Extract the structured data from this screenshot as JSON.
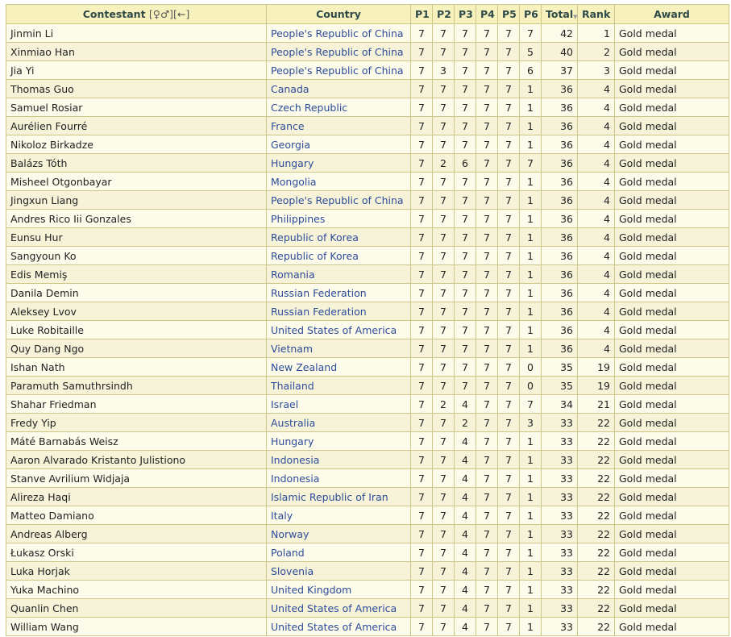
{
  "table": {
    "headers": {
      "contestant": "Contestant",
      "contestant_icons": "[♀♂][←]",
      "country": "Country",
      "p1": "P1",
      "p2": "P2",
      "p3": "P3",
      "p4": "P4",
      "p5": "P5",
      "p6": "P6",
      "total": "Total",
      "rank": "Rank",
      "award": "Award"
    },
    "sorted_column": "total",
    "rows": [
      {
        "name": "Jinmin Li",
        "country": "People's Republic of China",
        "scores": [
          7,
          7,
          7,
          7,
          7,
          7
        ],
        "total": 42,
        "rank": 1,
        "award": "Gold medal"
      },
      {
        "name": "Xinmiao Han",
        "country": "People's Republic of China",
        "scores": [
          7,
          7,
          7,
          7,
          7,
          5
        ],
        "total": 40,
        "rank": 2,
        "award": "Gold medal"
      },
      {
        "name": "Jia Yi",
        "country": "People's Republic of China",
        "scores": [
          7,
          3,
          7,
          7,
          7,
          6
        ],
        "total": 37,
        "rank": 3,
        "award": "Gold medal"
      },
      {
        "name": "Thomas Guo",
        "country": "Canada",
        "scores": [
          7,
          7,
          7,
          7,
          7,
          1
        ],
        "total": 36,
        "rank": 4,
        "award": "Gold medal"
      },
      {
        "name": "Samuel Rosiar",
        "country": "Czech Republic",
        "scores": [
          7,
          7,
          7,
          7,
          7,
          1
        ],
        "total": 36,
        "rank": 4,
        "award": "Gold medal"
      },
      {
        "name": "Aurélien Fourré",
        "country": "France",
        "scores": [
          7,
          7,
          7,
          7,
          7,
          1
        ],
        "total": 36,
        "rank": 4,
        "award": "Gold medal"
      },
      {
        "name": "Nikoloz Birkadze",
        "country": "Georgia",
        "scores": [
          7,
          7,
          7,
          7,
          7,
          1
        ],
        "total": 36,
        "rank": 4,
        "award": "Gold medal"
      },
      {
        "name": "Balázs Tóth",
        "country": "Hungary",
        "scores": [
          7,
          2,
          6,
          7,
          7,
          7
        ],
        "total": 36,
        "rank": 4,
        "award": "Gold medal"
      },
      {
        "name": "Misheel Otgonbayar",
        "country": "Mongolia",
        "scores": [
          7,
          7,
          7,
          7,
          7,
          1
        ],
        "total": 36,
        "rank": 4,
        "award": "Gold medal"
      },
      {
        "name": "Jingxun Liang",
        "country": "People's Republic of China",
        "scores": [
          7,
          7,
          7,
          7,
          7,
          1
        ],
        "total": 36,
        "rank": 4,
        "award": "Gold medal"
      },
      {
        "name": "Andres Rico Iii Gonzales",
        "country": "Philippines",
        "scores": [
          7,
          7,
          7,
          7,
          7,
          1
        ],
        "total": 36,
        "rank": 4,
        "award": "Gold medal"
      },
      {
        "name": "Eunsu Hur",
        "country": "Republic of Korea",
        "scores": [
          7,
          7,
          7,
          7,
          7,
          1
        ],
        "total": 36,
        "rank": 4,
        "award": "Gold medal"
      },
      {
        "name": "Sangyoun Ko",
        "country": "Republic of Korea",
        "scores": [
          7,
          7,
          7,
          7,
          7,
          1
        ],
        "total": 36,
        "rank": 4,
        "award": "Gold medal"
      },
      {
        "name": "Edis Memiş",
        "country": "Romania",
        "scores": [
          7,
          7,
          7,
          7,
          7,
          1
        ],
        "total": 36,
        "rank": 4,
        "award": "Gold medal"
      },
      {
        "name": "Danila Demin",
        "country": "Russian Federation",
        "scores": [
          7,
          7,
          7,
          7,
          7,
          1
        ],
        "total": 36,
        "rank": 4,
        "award": "Gold medal"
      },
      {
        "name": "Aleksey Lvov",
        "country": "Russian Federation",
        "scores": [
          7,
          7,
          7,
          7,
          7,
          1
        ],
        "total": 36,
        "rank": 4,
        "award": "Gold medal"
      },
      {
        "name": "Luke Robitaille",
        "country": "United States of America",
        "scores": [
          7,
          7,
          7,
          7,
          7,
          1
        ],
        "total": 36,
        "rank": 4,
        "award": "Gold medal"
      },
      {
        "name": "Quy Dang Ngo",
        "country": "Vietnam",
        "scores": [
          7,
          7,
          7,
          7,
          7,
          1
        ],
        "total": 36,
        "rank": 4,
        "award": "Gold medal"
      },
      {
        "name": "Ishan Nath",
        "country": "New Zealand",
        "scores": [
          7,
          7,
          7,
          7,
          7,
          0
        ],
        "total": 35,
        "rank": 19,
        "award": "Gold medal"
      },
      {
        "name": "Paramuth Samuthrsindh",
        "country": "Thailand",
        "scores": [
          7,
          7,
          7,
          7,
          7,
          0
        ],
        "total": 35,
        "rank": 19,
        "award": "Gold medal"
      },
      {
        "name": "Shahar Friedman",
        "country": "Israel",
        "scores": [
          7,
          2,
          4,
          7,
          7,
          7
        ],
        "total": 34,
        "rank": 21,
        "award": "Gold medal"
      },
      {
        "name": "Fredy Yip",
        "country": "Australia",
        "scores": [
          7,
          7,
          2,
          7,
          7,
          3
        ],
        "total": 33,
        "rank": 22,
        "award": "Gold medal"
      },
      {
        "name": "Máté Barnabás Weisz",
        "country": "Hungary",
        "scores": [
          7,
          7,
          4,
          7,
          7,
          1
        ],
        "total": 33,
        "rank": 22,
        "award": "Gold medal"
      },
      {
        "name": "Aaron Alvarado Kristanto Julistiono",
        "country": "Indonesia",
        "scores": [
          7,
          7,
          4,
          7,
          7,
          1
        ],
        "total": 33,
        "rank": 22,
        "award": "Gold medal"
      },
      {
        "name": "Stanve Avrilium Widjaja",
        "country": "Indonesia",
        "scores": [
          7,
          7,
          4,
          7,
          7,
          1
        ],
        "total": 33,
        "rank": 22,
        "award": "Gold medal"
      },
      {
        "name": "Alireza Haqi",
        "country": "Islamic Republic of Iran",
        "scores": [
          7,
          7,
          4,
          7,
          7,
          1
        ],
        "total": 33,
        "rank": 22,
        "award": "Gold medal"
      },
      {
        "name": "Matteo Damiano",
        "country": "Italy",
        "scores": [
          7,
          7,
          4,
          7,
          7,
          1
        ],
        "total": 33,
        "rank": 22,
        "award": "Gold medal"
      },
      {
        "name": "Andreas Alberg",
        "country": "Norway",
        "scores": [
          7,
          7,
          4,
          7,
          7,
          1
        ],
        "total": 33,
        "rank": 22,
        "award": "Gold medal"
      },
      {
        "name": "Łukasz Orski",
        "country": "Poland",
        "scores": [
          7,
          7,
          4,
          7,
          7,
          1
        ],
        "total": 33,
        "rank": 22,
        "award": "Gold medal"
      },
      {
        "name": "Luka Horjak",
        "country": "Slovenia",
        "scores": [
          7,
          7,
          4,
          7,
          7,
          1
        ],
        "total": 33,
        "rank": 22,
        "award": "Gold medal"
      },
      {
        "name": "Yuka Machino",
        "country": "United Kingdom",
        "scores": [
          7,
          7,
          4,
          7,
          7,
          1
        ],
        "total": 33,
        "rank": 22,
        "award": "Gold medal"
      },
      {
        "name": "Quanlin Chen",
        "country": "United States of America",
        "scores": [
          7,
          7,
          4,
          7,
          7,
          1
        ],
        "total": 33,
        "rank": 22,
        "award": "Gold medal"
      },
      {
        "name": "William Wang",
        "country": "United States of America",
        "scores": [
          7,
          7,
          4,
          7,
          7,
          1
        ],
        "total": 33,
        "rank": 22,
        "award": "Gold medal"
      }
    ]
  }
}
